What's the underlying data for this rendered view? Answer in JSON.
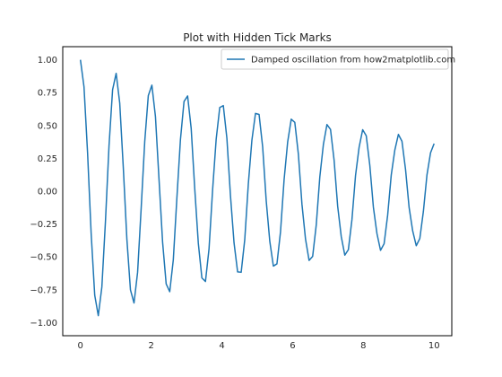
{
  "chart_data": {
    "type": "line",
    "title": "Plot with Hidden Tick Marks",
    "xlabel": "",
    "ylabel": "",
    "xlim": [
      -0.5,
      10.5
    ],
    "ylim": [
      -1.1,
      1.1
    ],
    "xticks": [
      0,
      2,
      4,
      6,
      8,
      10
    ],
    "xtick_labels": [
      "0",
      "2",
      "4",
      "6",
      "8",
      "10"
    ],
    "yticks": [
      1.0,
      0.75,
      0.5,
      0.25,
      0.0,
      -0.25,
      -0.5,
      -0.75,
      -1.0
    ],
    "ytick_labels": [
      "1.00",
      "0.75",
      "0.50",
      "0.25",
      "0.00",
      "−0.25",
      "−0.50",
      "−0.75",
      "−1.00"
    ],
    "tick_marks_visible": false,
    "grid": false,
    "legend_position": "upper right",
    "series": [
      {
        "name": "Damped oscillation from how2matplotlib.com",
        "color": "#1f77b4",
        "x": [
          0.0,
          0.101,
          0.202,
          0.303,
          0.404,
          0.505,
          0.606,
          0.707,
          0.808,
          0.909,
          1.01,
          1.111,
          1.212,
          1.313,
          1.414,
          1.515,
          1.616,
          1.717,
          1.818,
          1.919,
          2.02,
          2.121,
          2.222,
          2.323,
          2.424,
          2.525,
          2.626,
          2.727,
          2.828,
          2.929,
          3.03,
          3.131,
          3.232,
          3.333,
          3.434,
          3.535,
          3.636,
          3.737,
          3.838,
          3.939,
          4.04,
          4.141,
          4.242,
          4.343,
          4.444,
          4.545,
          4.646,
          4.747,
          4.848,
          4.949,
          5.051,
          5.152,
          5.253,
          5.354,
          5.455,
          5.556,
          5.657,
          5.758,
          5.859,
          5.96,
          6.061,
          6.162,
          6.263,
          6.364,
          6.465,
          6.566,
          6.667,
          6.768,
          6.869,
          6.97,
          7.071,
          7.172,
          7.273,
          7.374,
          7.475,
          7.576,
          7.677,
          7.778,
          7.879,
          7.98,
          8.081,
          8.182,
          8.283,
          8.384,
          8.485,
          8.586,
          8.687,
          8.788,
          8.889,
          8.99,
          9.091,
          9.192,
          9.293,
          9.394,
          9.495,
          9.596,
          9.697,
          9.798,
          9.899,
          10.0
        ],
        "y": [
          1.0,
          0.794,
          0.291,
          -0.321,
          -0.792,
          -0.947,
          -0.729,
          -0.232,
          0.345,
          0.772,
          0.897,
          0.671,
          0.179,
          -0.364,
          -0.751,
          -0.851,
          -0.618,
          -0.131,
          0.378,
          0.728,
          0.807,
          0.568,
          0.089,
          -0.387,
          -0.706,
          -0.765,
          -0.522,
          -0.052,
          0.393,
          0.683,
          0.725,
          0.479,
          0.019,
          -0.396,
          -0.66,
          -0.687,
          -0.439,
          0.01,
          0.396,
          0.637,
          0.651,
          0.403,
          -0.034,
          -0.393,
          -0.614,
          -0.617,
          -0.369,
          0.055,
          0.388,
          0.592,
          0.584,
          0.338,
          -0.073,
          -0.382,
          -0.57,
          -0.553,
          -0.309,
          0.087,
          0.374,
          0.548,
          0.524,
          0.282,
          -0.099,
          -0.365,
          -0.527,
          -0.496,
          -0.258,
          0.108,
          0.355,
          0.507,
          0.47,
          0.236,
          -0.114,
          -0.345,
          -0.487,
          -0.445,
          -0.216,
          0.119,
          0.334,
          0.468,
          0.422,
          0.197,
          -0.122,
          -0.323,
          -0.45,
          -0.4,
          -0.181,
          0.123,
          0.313,
          0.432,
          0.38,
          0.166,
          -0.124,
          -0.302,
          -0.415,
          -0.36,
          -0.153,
          0.124,
          0.292,
          0.362
        ]
      }
    ]
  }
}
